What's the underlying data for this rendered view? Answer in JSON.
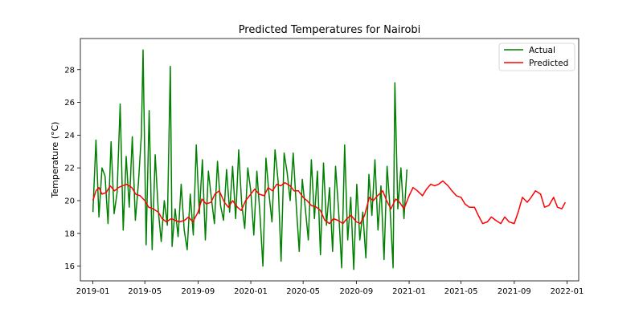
{
  "chart_data": {
    "type": "line",
    "title": "Predicted Temperatures for Nairobi",
    "xlabel": "",
    "ylabel": "Temperature (°C)",
    "xlim": [
      "2018-12-03",
      "2022-01-28"
    ],
    "ylim": [
      15.1,
      29.9
    ],
    "x_ticks": [
      "2019-01",
      "2019-05",
      "2019-09",
      "2020-01",
      "2020-05",
      "2020-09",
      "2021-01",
      "2021-05",
      "2021-09",
      "2022-01"
    ],
    "y_ticks": [
      16,
      18,
      20,
      22,
      24,
      26,
      28
    ],
    "legend": {
      "position": "top-right",
      "entries": [
        "Actual",
        "Predicted"
      ]
    },
    "grid": false,
    "series": [
      {
        "name": "Actual",
        "color": "#008000",
        "x": [
          "2019-01-01",
          "2019-01-08",
          "2019-01-15",
          "2019-01-22",
          "2019-01-29",
          "2019-02-05",
          "2019-02-12",
          "2019-02-19",
          "2019-02-26",
          "2019-03-05",
          "2019-03-12",
          "2019-03-19",
          "2019-03-26",
          "2019-04-02",
          "2019-04-09",
          "2019-04-16",
          "2019-04-23",
          "2019-04-27",
          "2019-05-04",
          "2019-05-11",
          "2019-05-18",
          "2019-05-25",
          "2019-06-01",
          "2019-06-08",
          "2019-06-15",
          "2019-06-22",
          "2019-06-29",
          "2019-07-03",
          "2019-07-10",
          "2019-07-17",
          "2019-07-24",
          "2019-07-31",
          "2019-08-07",
          "2019-08-14",
          "2019-08-21",
          "2019-08-28",
          "2019-09-04",
          "2019-09-11",
          "2019-09-18",
          "2019-09-25",
          "2019-10-02",
          "2019-10-09",
          "2019-10-16",
          "2019-10-23",
          "2019-10-30",
          "2019-11-06",
          "2019-11-13",
          "2019-11-20",
          "2019-11-27",
          "2019-12-04",
          "2019-12-11",
          "2019-12-18",
          "2019-12-25",
          "2020-01-01",
          "2020-01-08",
          "2020-01-15",
          "2020-01-22",
          "2020-01-29",
          "2020-02-05",
          "2020-02-12",
          "2020-02-19",
          "2020-02-26",
          "2020-03-04",
          "2020-03-11",
          "2020-03-18",
          "2020-03-25",
          "2020-04-01",
          "2020-04-08",
          "2020-04-15",
          "2020-04-22",
          "2020-04-29",
          "2020-05-06",
          "2020-05-13",
          "2020-05-20",
          "2020-05-27",
          "2020-06-03",
          "2020-06-10",
          "2020-06-17",
          "2020-06-24",
          "2020-07-01",
          "2020-07-08",
          "2020-07-15",
          "2020-07-22",
          "2020-07-29",
          "2020-08-05",
          "2020-08-12",
          "2020-08-19",
          "2020-08-26",
          "2020-09-02",
          "2020-09-09",
          "2020-09-16",
          "2020-09-23",
          "2020-09-30",
          "2020-10-07",
          "2020-10-14",
          "2020-10-21",
          "2020-10-28",
          "2020-11-04",
          "2020-11-11",
          "2020-11-18",
          "2020-11-25",
          "2020-11-29",
          "2020-12-06",
          "2020-12-13",
          "2020-12-20",
          "2020-12-27"
        ],
        "y": [
          19.3,
          23.7,
          19.0,
          22.0,
          21.5,
          18.6,
          23.6,
          19.2,
          20.5,
          25.9,
          18.2,
          22.7,
          19.6,
          23.9,
          18.8,
          21.0,
          24.0,
          29.2,
          17.3,
          25.5,
          17.0,
          22.8,
          19.4,
          17.5,
          20.0,
          18.5,
          28.2,
          17.2,
          19.5,
          17.8,
          21.0,
          18.2,
          17.0,
          20.4,
          17.9,
          23.4,
          19.2,
          22.5,
          17.6,
          21.8,
          20.1,
          18.6,
          22.4,
          19.7,
          18.8,
          21.9,
          19.3,
          22.1,
          18.9,
          23.1,
          19.8,
          18.3,
          22.0,
          20.6,
          17.9,
          21.8,
          19.2,
          16.0,
          22.6,
          20.4,
          18.7,
          23.1,
          21.2,
          16.3,
          22.9,
          21.7,
          20.0,
          22.9,
          19.7,
          16.9,
          21.3,
          19.5,
          17.6,
          22.5,
          18.9,
          21.8,
          16.7,
          22.3,
          18.5,
          20.8,
          16.9,
          22.1,
          19.4,
          15.9,
          23.4,
          17.6,
          20.2,
          15.8,
          21.0,
          17.6,
          19.3,
          16.5,
          21.6,
          19.1,
          22.5,
          18.2,
          20.9,
          16.4,
          22.1,
          19.5,
          15.9,
          27.2,
          19.5,
          22.0,
          18.9,
          21.9
        ]
      },
      {
        "name": "Predicted",
        "color": "#ff0000",
        "x": [
          "2019-01-01",
          "2019-01-08",
          "2019-01-15",
          "2019-01-22",
          "2019-02-01",
          "2019-02-10",
          "2019-02-20",
          "2019-03-01",
          "2019-03-10",
          "2019-03-20",
          "2019-04-01",
          "2019-04-10",
          "2019-04-20",
          "2019-05-01",
          "2019-05-10",
          "2019-05-20",
          "2019-06-01",
          "2019-06-10",
          "2019-06-20",
          "2019-07-01",
          "2019-07-10",
          "2019-07-20",
          "2019-08-01",
          "2019-08-10",
          "2019-08-20",
          "2019-09-01",
          "2019-09-10",
          "2019-09-20",
          "2019-10-01",
          "2019-10-10",
          "2019-10-20",
          "2019-11-01",
          "2019-11-10",
          "2019-11-20",
          "2019-12-01",
          "2019-12-10",
          "2019-12-20",
          "2020-01-01",
          "2020-01-10",
          "2020-01-20",
          "2020-02-01",
          "2020-02-10",
          "2020-02-20",
          "2020-03-01",
          "2020-03-10",
          "2020-03-20",
          "2020-04-01",
          "2020-04-10",
          "2020-04-20",
          "2020-05-01",
          "2020-05-10",
          "2020-05-20",
          "2020-06-01",
          "2020-06-10",
          "2020-06-20",
          "2020-07-01",
          "2020-07-10",
          "2020-07-20",
          "2020-08-01",
          "2020-08-10",
          "2020-08-20",
          "2020-09-01",
          "2020-09-10",
          "2020-09-20",
          "2020-10-01",
          "2020-10-10",
          "2020-10-20",
          "2020-11-01",
          "2020-11-10",
          "2020-11-20",
          "2020-12-01",
          "2020-12-10",
          "2020-12-20",
          "2021-01-01",
          "2021-01-10",
          "2021-01-20",
          "2021-02-01",
          "2021-02-10",
          "2021-02-20",
          "2021-03-01",
          "2021-03-10",
          "2021-03-20",
          "2021-04-01",
          "2021-04-10",
          "2021-04-20",
          "2021-05-01",
          "2021-05-10",
          "2021-05-20",
          "2021-06-01",
          "2021-06-10",
          "2021-06-20",
          "2021-07-01",
          "2021-07-10",
          "2021-07-20",
          "2021-08-01",
          "2021-08-10",
          "2021-08-20",
          "2021-09-01",
          "2021-09-10",
          "2021-09-20",
          "2021-10-01",
          "2021-10-10",
          "2021-10-20",
          "2021-11-01",
          "2021-11-10",
          "2021-11-20",
          "2021-12-01",
          "2021-12-10",
          "2021-12-20",
          "2021-12-28"
        ],
        "y": [
          20.0,
          20.6,
          20.8,
          20.4,
          20.5,
          20.9,
          20.6,
          20.8,
          20.9,
          21.0,
          20.8,
          20.4,
          20.3,
          20.0,
          19.6,
          19.5,
          19.3,
          18.9,
          18.7,
          18.9,
          18.8,
          18.7,
          18.8,
          19.0,
          18.7,
          19.3,
          20.1,
          19.8,
          19.9,
          20.4,
          20.6,
          19.9,
          19.6,
          20.0,
          19.6,
          19.4,
          20.0,
          20.4,
          20.7,
          20.4,
          20.3,
          20.8,
          20.6,
          21.0,
          20.9,
          21.1,
          20.9,
          20.6,
          20.6,
          20.2,
          20.0,
          19.7,
          19.6,
          19.4,
          18.8,
          18.6,
          18.9,
          18.8,
          18.6,
          18.9,
          19.1,
          18.7,
          18.6,
          19.1,
          20.2,
          20.0,
          20.3,
          20.6,
          20.0,
          19.5,
          20.1,
          19.9,
          19.5,
          20.3,
          20.8,
          20.6,
          20.3,
          20.7,
          21.0,
          20.9,
          21.0,
          21.2,
          20.9,
          20.6,
          20.3,
          20.2,
          19.8,
          19.6,
          19.6,
          19.1,
          18.6,
          18.7,
          19.0,
          18.8,
          18.6,
          19.0,
          18.7,
          18.6,
          19.3,
          20.2,
          19.9,
          20.2,
          20.6,
          20.4,
          19.6,
          19.7,
          20.2,
          19.6,
          19.5,
          19.9
        ]
      }
    ]
  }
}
